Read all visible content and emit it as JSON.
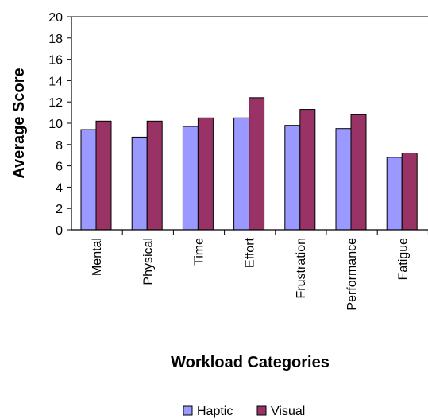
{
  "chart_data": {
    "type": "bar",
    "title": "",
    "xlabel": "Workload Categories",
    "ylabel": "Average Score",
    "ylim": [
      0,
      20
    ],
    "yticks": [
      0,
      2,
      4,
      6,
      8,
      10,
      12,
      14,
      16,
      18,
      20
    ],
    "grid": false,
    "legend_position": "bottom",
    "categories": [
      "Mental",
      "Physical",
      "Time",
      "Effort",
      "Frustration",
      "Performance",
      "Fatigue"
    ],
    "series": [
      {
        "name": "Haptic",
        "color": "#9999FF",
        "values": [
          9.4,
          8.7,
          9.7,
          10.5,
          9.8,
          9.5,
          6.8
        ]
      },
      {
        "name": "Visual",
        "color": "#993366",
        "values": [
          10.2,
          10.2,
          10.5,
          12.4,
          11.3,
          10.8,
          7.2
        ]
      }
    ]
  }
}
